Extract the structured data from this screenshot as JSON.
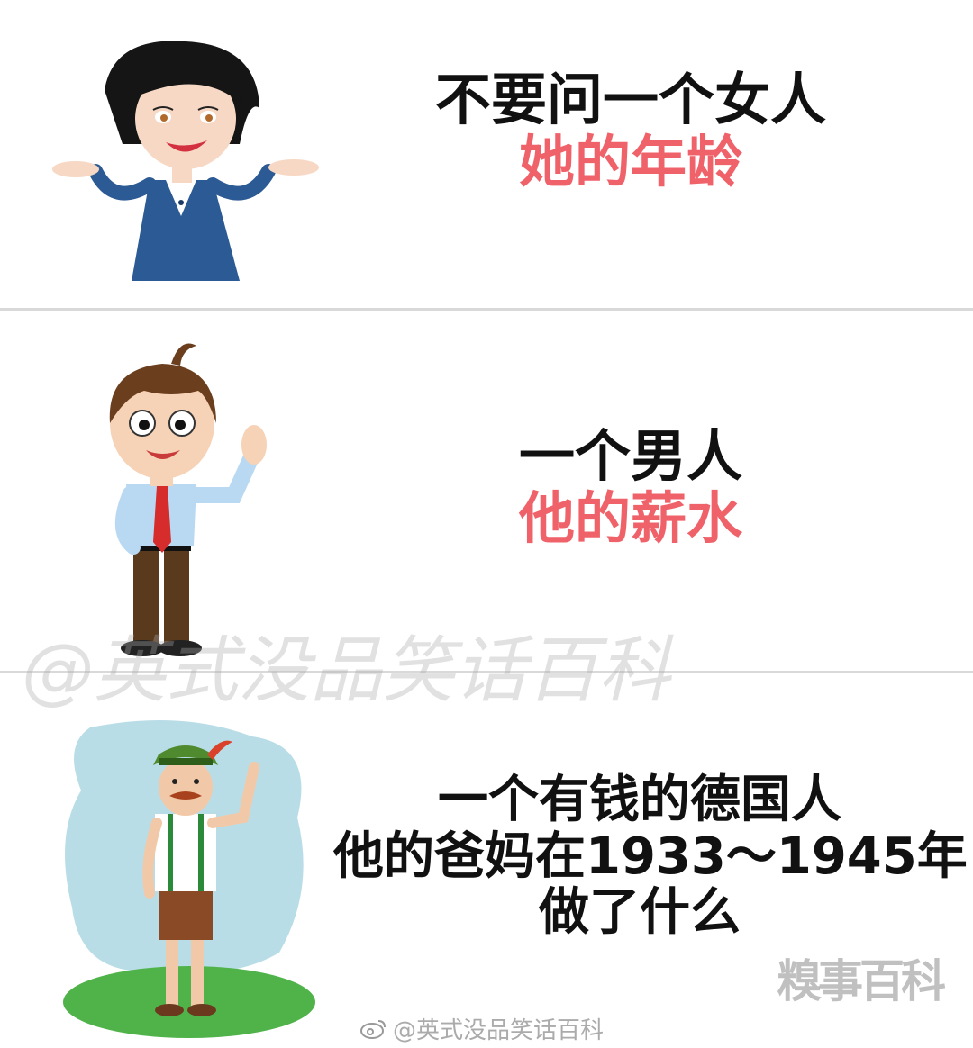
{
  "panels": [
    {
      "line1": "不要问一个女人",
      "line2": "她的年龄"
    },
    {
      "line1": "一个男人",
      "line2": "他的薪水"
    },
    {
      "line1": "一个有钱的德国人",
      "line2": "他的爸妈在1933～1945年",
      "line3": "做了什么"
    }
  ],
  "watermarks": {
    "center": "@英式没品笑话百科",
    "logo": "糗事百科",
    "bottom": "@英式没品笑话百科"
  },
  "colors": {
    "highlight": "#f0626a",
    "text": "#111111"
  },
  "icons": [
    "woman-figure",
    "man-figure",
    "german-man-figure",
    "weibo-icon"
  ]
}
